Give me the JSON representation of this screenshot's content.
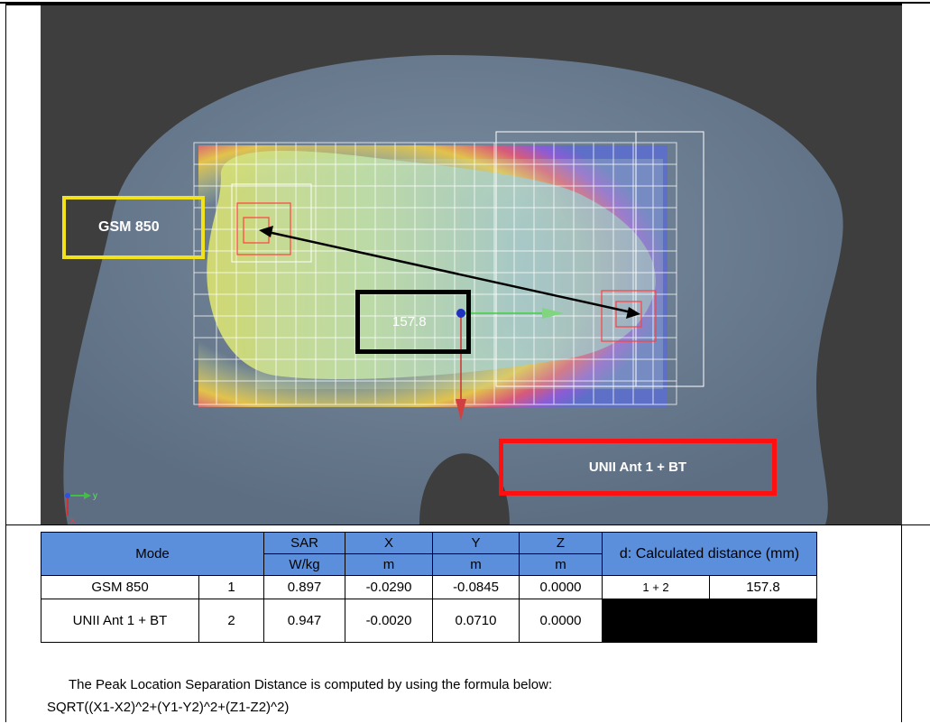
{
  "plot": {
    "label_gsm": "GSM 850",
    "label_unii": "UNII Ant 1 + BT",
    "distance_value": "157.8",
    "axis_y": "y",
    "axis_x": "x"
  },
  "table": {
    "headers": {
      "mode": "Mode",
      "sar": "SAR",
      "x": "X",
      "y": "Y",
      "z": "Z",
      "distance": "d: Calculated distance (mm)",
      "sar_unit": "W/kg",
      "x_unit": "m",
      "y_unit": "m",
      "z_unit": "m"
    },
    "rows": [
      {
        "mode": "GSM 850",
        "index": "1",
        "sar": "0.897",
        "x": "-0.0290",
        "y": "-0.0845",
        "z": "0.0000",
        "pair": "1 + 2",
        "distance": "157.8"
      },
      {
        "mode": "UNII Ant 1 + BT",
        "index": "2",
        "sar": "0.947",
        "x": "-0.0020",
        "y": "0.0710",
        "z": "0.0000"
      }
    ]
  },
  "notes": {
    "line1": "The Peak Location Separation Distance is computed by using the formula below:",
    "line2": "SQRT((X1-X2)^2+(Y1-Y2)^2+(Z1-Z2)^2)"
  }
}
